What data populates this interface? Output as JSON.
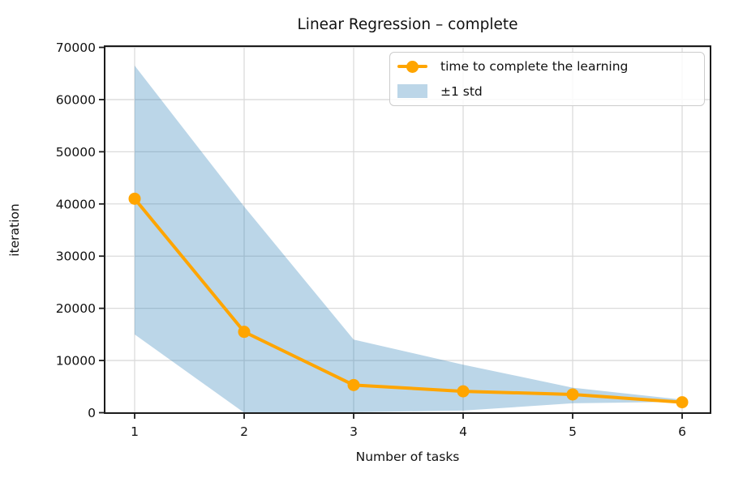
{
  "figure": {
    "title": "Linear Regression – complete",
    "xlabel": "Number of tasks",
    "ylabel": "iteration"
  },
  "legend": {
    "position": "upper right",
    "items": [
      {
        "label": "time to complete the learning",
        "type": "line-with-marker",
        "color": "#FFA500"
      },
      {
        "label": "±1 std",
        "type": "patch",
        "color": "#BCD6E8"
      }
    ]
  },
  "colors": {
    "series": "#FFA500",
    "band_fill": "rgba(31,119,180,0.30)",
    "grid": "#DBDBDB",
    "spine": "#1c1c1c",
    "text": "#111111",
    "legend_border": "#cccccc"
  },
  "chart_data": {
    "type": "line",
    "title": "Linear Regression – complete",
    "xlabel": "Number of tasks",
    "ylabel": "iteration",
    "x": [
      1,
      2,
      3,
      4,
      5,
      6
    ],
    "series": [
      {
        "name": "time to complete the learning",
        "values": [
          41000,
          15500,
          5300,
          4100,
          3500,
          2000
        ],
        "color": "#FFA500",
        "marker": "circle"
      }
    ],
    "band": {
      "name": "±1 std",
      "upper": [
        66500,
        39500,
        14000,
        9200,
        4800,
        2500
      ],
      "lower": [
        15000,
        0,
        100,
        400,
        1800,
        2100
      ],
      "color": "rgba(31,119,180,0.30)"
    },
    "xticks": [
      1,
      2,
      3,
      4,
      5,
      6
    ],
    "yticks": [
      0,
      10000,
      20000,
      30000,
      40000,
      50000,
      60000,
      70000
    ],
    "xlim": [
      0.73,
      6.26
    ],
    "ylim": [
      0,
      70000
    ],
    "grid": true,
    "legend_position": "upper right"
  }
}
